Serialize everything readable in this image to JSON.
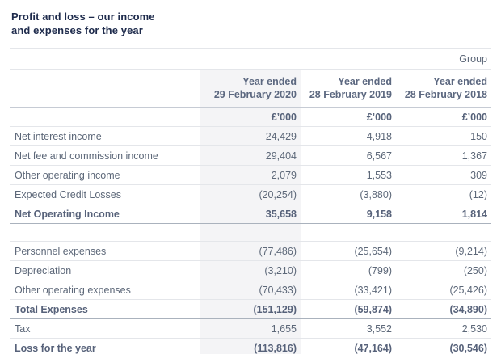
{
  "title": {
    "line1": "Profit and loss – our income",
    "line2": "and expenses for the year"
  },
  "table": {
    "group_label": "Group",
    "columns": [
      {
        "period": "Year ended",
        "date": "29 February 2020"
      },
      {
        "period": "Year ended",
        "date": "28 February 2019"
      },
      {
        "period": "Year ended",
        "date": "28 February 2018"
      }
    ],
    "units": {
      "col1": "£’000",
      "col2": "£’000",
      "col3": "£’000"
    },
    "rows": [
      {
        "label": "Net interest income",
        "values": [
          "24,429",
          "4,918",
          "150"
        ]
      },
      {
        "label": "Net fee and commission income",
        "values": [
          "29,404",
          "6,567",
          "1,367"
        ]
      },
      {
        "label": "Other operating income",
        "values": [
          "2,079",
          "1,553",
          "309"
        ]
      },
      {
        "label": "Expected Credit Losses",
        "values": [
          "(20,254)",
          "(3,880)",
          "(12)"
        ]
      },
      {
        "label": "Net Operating Income",
        "values": [
          "35,658",
          "9,158",
          "1,814"
        ]
      },
      {
        "label": "Personnel expenses",
        "values": [
          "(77,486)",
          "(25,654)",
          "(9,214)"
        ]
      },
      {
        "label": "Depreciation",
        "values": [
          "(3,210)",
          "(799)",
          "(250)"
        ]
      },
      {
        "label": "Other operating expenses",
        "values": [
          "(70,433)",
          "(33,421)",
          "(25,426)"
        ]
      },
      {
        "label": "Total Expenses",
        "values": [
          "(151,129)",
          "(59,874)",
          "(34,890)"
        ]
      },
      {
        "label": "Tax",
        "values": [
          "1,655",
          "3,552",
          "2,530"
        ]
      },
      {
        "label": "Loss for the year",
        "values": [
          "(113,816)",
          "(47,164)",
          "(30,546)"
        ]
      }
    ],
    "colors": {
      "title_text": "#1e2b4c",
      "body_text": "#5d6879",
      "highlight_column_bg": "#f4f4f6",
      "border_light": "#e4e6ea",
      "border_dark": "#aab2bd",
      "border_header": "#c6cbd4"
    }
  }
}
